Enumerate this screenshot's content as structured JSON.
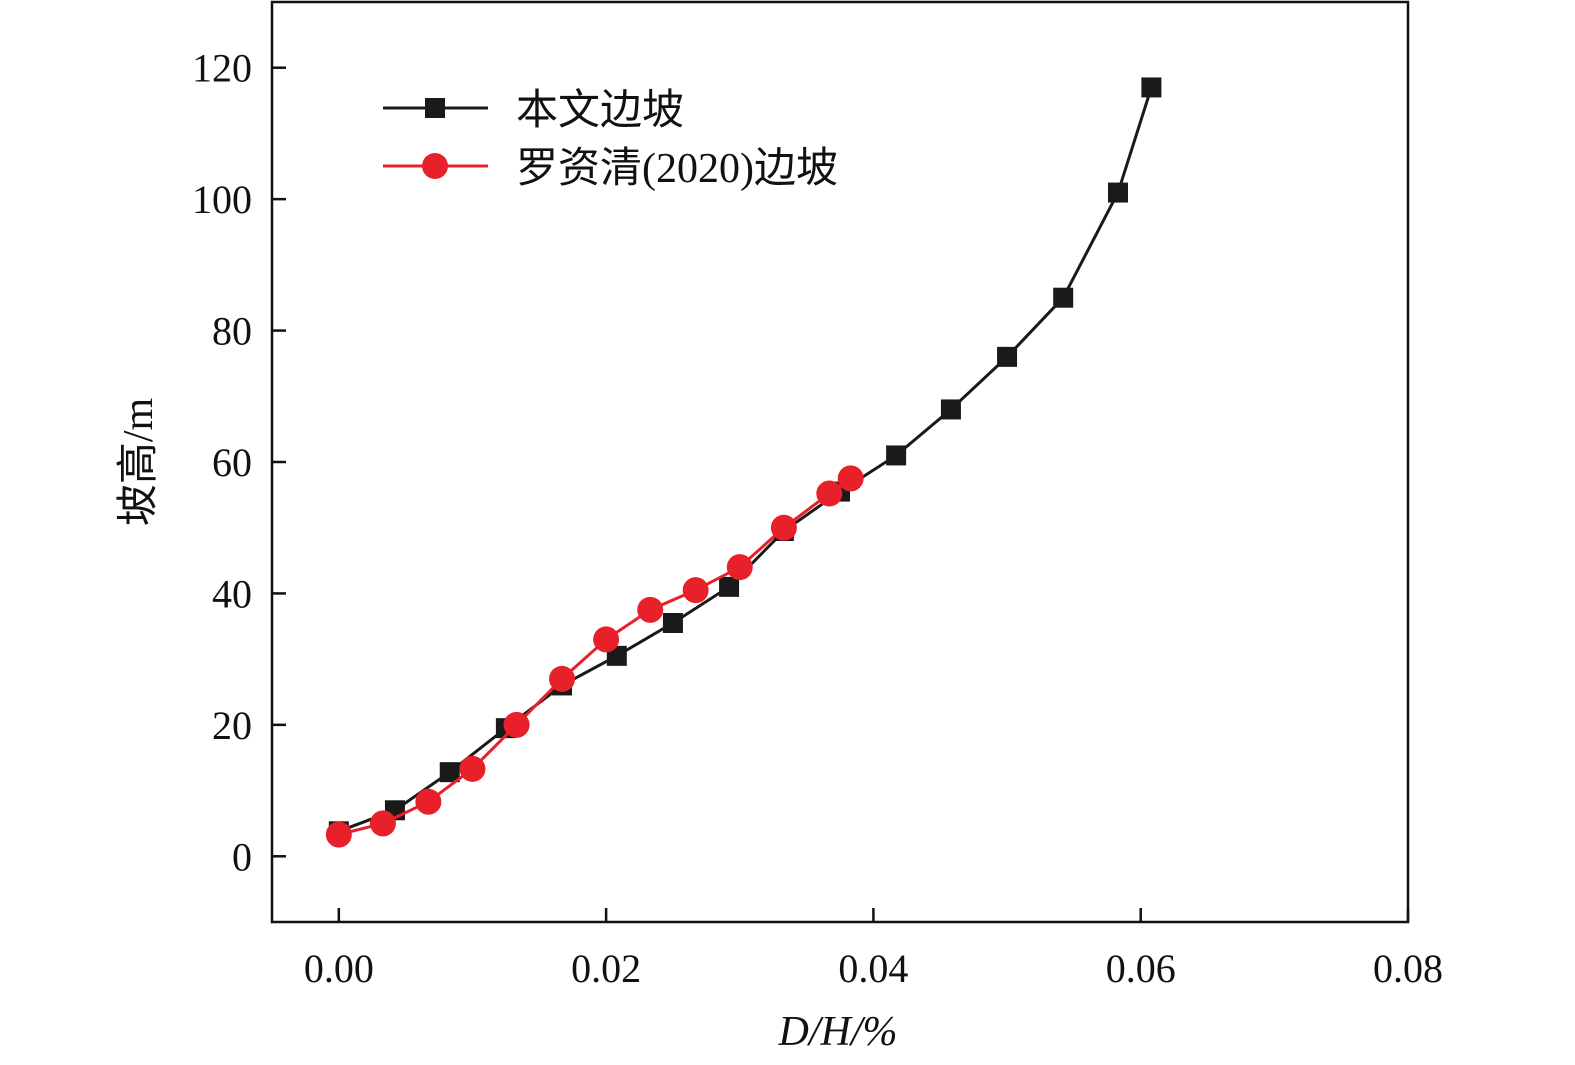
{
  "chart_data": {
    "type": "line",
    "title": "",
    "xlabel": "D/H/%",
    "ylabel": "坡高/m",
    "xlim": [
      -0.005,
      0.08
    ],
    "ylim": [
      -10,
      130
    ],
    "x_ticks": [
      "0.00",
      "0.02",
      "0.04",
      "0.06",
      "0.08"
    ],
    "x_tick_values": [
      0.0,
      0.02,
      0.04,
      0.06,
      0.08
    ],
    "y_ticks": [
      "0",
      "20",
      "40",
      "60",
      "80",
      "100",
      "120"
    ],
    "y_tick_values": [
      0,
      20,
      40,
      60,
      80,
      100,
      120
    ],
    "grid": false,
    "legend_position": "top-left",
    "series": [
      {
        "name": "本文边坡",
        "color": "#1a1a1a",
        "marker": "square",
        "x": [
          0.0,
          0.0042,
          0.0083,
          0.0125,
          0.0167,
          0.0208,
          0.025,
          0.0292,
          0.0333,
          0.0375,
          0.0417,
          0.0458,
          0.05,
          0.0542,
          0.0583,
          0.0608
        ],
        "y": [
          3.8,
          7.0,
          12.8,
          19.5,
          26.0,
          30.5,
          35.5,
          41.0,
          49.5,
          55.5,
          61.0,
          68.0,
          76.0,
          85.0,
          101.0,
          117.0
        ]
      },
      {
        "name": "罗资清(2020)边坡",
        "color": "#e8202a",
        "marker": "circle",
        "x": [
          0.0,
          0.0033,
          0.0067,
          0.01,
          0.0133,
          0.0167,
          0.02,
          0.0233,
          0.0267,
          0.03,
          0.0333,
          0.0367,
          0.0383
        ],
        "y": [
          3.3,
          5.0,
          8.3,
          13.3,
          20.0,
          27.0,
          33.0,
          37.5,
          40.5,
          44.0,
          50.0,
          55.2,
          57.5
        ]
      }
    ]
  }
}
